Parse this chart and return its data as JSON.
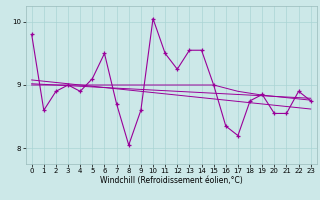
{
  "xlabel": "Windchill (Refroidissement éolien,°C)",
  "background_color": "#cce8e8",
  "line_color": "#990099",
  "ylim": [
    7.75,
    10.25
  ],
  "xlim": [
    -0.5,
    23.5
  ],
  "yticks": [
    8,
    9,
    10
  ],
  "xticks": [
    0,
    1,
    2,
    3,
    4,
    5,
    6,
    7,
    8,
    9,
    10,
    11,
    12,
    13,
    14,
    15,
    16,
    17,
    18,
    19,
    20,
    21,
    22,
    23
  ],
  "x": [
    0,
    1,
    2,
    3,
    4,
    5,
    6,
    7,
    8,
    9,
    10,
    11,
    12,
    13,
    14,
    15,
    16,
    17,
    18,
    19,
    20,
    21,
    22,
    23
  ],
  "y_main": [
    9.8,
    8.6,
    8.9,
    9.0,
    8.9,
    9.1,
    9.5,
    8.7,
    8.05,
    8.6,
    10.05,
    9.5,
    9.25,
    9.55,
    9.55,
    9.0,
    8.35,
    8.2,
    8.75,
    8.85,
    8.55,
    8.55,
    8.9,
    8.75
  ],
  "y_reg1": [
    9.0,
    9.0,
    9.0,
    9.0,
    9.0,
    9.0,
    9.0,
    9.0,
    9.0,
    9.0,
    9.0,
    9.0,
    9.0,
    9.0,
    9.0,
    9.0,
    8.95,
    8.9,
    8.87,
    8.84,
    8.82,
    8.8,
    8.78,
    8.76
  ],
  "y_reg2": [
    9.02,
    9.01,
    9.0,
    8.99,
    8.98,
    8.97,
    8.96,
    8.95,
    8.94,
    8.93,
    8.92,
    8.91,
    8.9,
    8.89,
    8.88,
    8.87,
    8.86,
    8.85,
    8.84,
    8.83,
    8.82,
    8.81,
    8.8,
    8.79
  ],
  "y_reg3": [
    9.08,
    9.06,
    9.04,
    9.02,
    9.0,
    8.98,
    8.96,
    8.94,
    8.92,
    8.9,
    8.88,
    8.86,
    8.84,
    8.82,
    8.8,
    8.78,
    8.76,
    8.74,
    8.72,
    8.7,
    8.68,
    8.66,
    8.64,
    8.62
  ],
  "grid_color": "#aad4d4",
  "tick_labelsize": 5,
  "xlabel_fontsize": 5.5
}
